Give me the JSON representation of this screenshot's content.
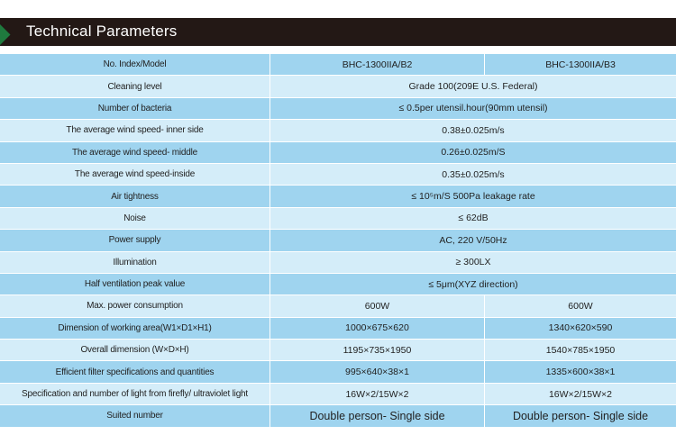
{
  "header": {
    "title": "Technical Parameters"
  },
  "table": {
    "rows": [
      {
        "label": "No. Index/Model",
        "b2": "BHC-1300IIA/B2",
        "b3": "BHC-1300IIA/B3"
      },
      {
        "label": "Cleaning level",
        "value": "Grade 100(209E U.S. Federal)"
      },
      {
        "label": "Number of bacteria",
        "value": "≤ 0.5per utensil.hour(90mm utensil)"
      },
      {
        "label": "The average wind speed- inner side",
        "value": "0.38±0.025m/s"
      },
      {
        "label": "The average wind speed- middle",
        "value": "0.26±0.025m/S"
      },
      {
        "label": "The average wind speed-inside",
        "value": "0.35±0.025m/s"
      },
      {
        "label": "Air tightness",
        "value": "≤ 10⁵m/S 500Pa leakage rate"
      },
      {
        "label": "Noise",
        "value": "≤ 62dB"
      },
      {
        "label": "Power supply",
        "value": "AC, 220 V/50Hz"
      },
      {
        "label": "Illumination",
        "value": "≥ 300LX"
      },
      {
        "label": "Half ventilation peak value",
        "value": "≤ 5μm(XYZ direction)"
      },
      {
        "label": "Max. power consumption",
        "b2": "600W",
        "b3": "600W"
      },
      {
        "label": "Dimension of working area(W1×D1×H1)",
        "b2": "1000×675×620",
        "b3": "1340×620×590"
      },
      {
        "label": "Overall dimension (W×D×H)",
        "b2": "1195×735×1950",
        "b3": "1540×785×1950"
      },
      {
        "label": "Efficient filter specifications and quantities",
        "b2": "995×640×38×1",
        "b3": "1335×600×38×1"
      },
      {
        "label": "Specification and number of light from firefly/ ultraviolet light",
        "b2": "16W×2/15W×2",
        "b3": "16W×2/15W×2"
      },
      {
        "label": "Suited number",
        "b2": "Double person- Single side",
        "b3": "Double person- Single side"
      }
    ]
  },
  "colors": {
    "header_bg": "#231815",
    "accent": "#1f7a3e",
    "row_dark": "#9fd4ef",
    "row_light": "#d4edf9"
  }
}
